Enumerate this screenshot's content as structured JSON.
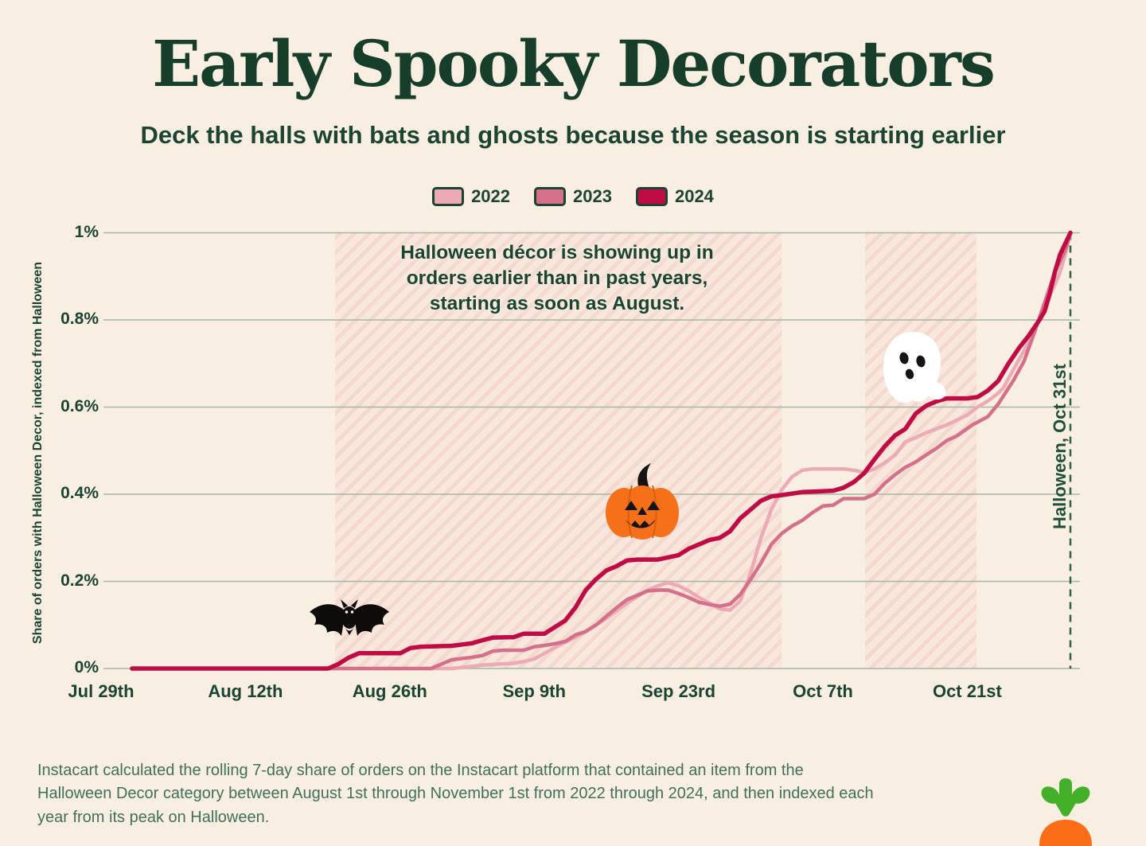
{
  "page": {
    "background": "#f8efe2"
  },
  "header": {
    "title": "Early Spooky Decorators",
    "subtitle": "Deck the halls with bats and ghosts because the season is starting earlier"
  },
  "legend": {
    "items": [
      {
        "label": "2022",
        "color": "#ecaab4",
        "pattern": "hatch"
      },
      {
        "label": "2023",
        "color": "#d4708a",
        "pattern": "dots"
      },
      {
        "label": "2024",
        "color": "#c00c45",
        "pattern": "solid"
      }
    ]
  },
  "chart_data": {
    "type": "line",
    "title": "Early Spooky Decorators",
    "ylabel": "Share of orders with Halloween Decor, indexed from Halloween",
    "xlabel": "",
    "ylim": [
      0,
      1
    ],
    "grid": "horizontal",
    "legend_position": "top",
    "x_unit": "days since Jul 29",
    "y_ticks": [
      {
        "v": 1.0,
        "label": "1%"
      },
      {
        "v": 0.8,
        "label": "0.8%"
      },
      {
        "v": 0.6,
        "label": "0.6%"
      },
      {
        "v": 0.4,
        "label": "0.4%"
      },
      {
        "v": 0.2,
        "label": "0.2%"
      },
      {
        "v": 0.0,
        "label": "0%"
      }
    ],
    "x_ticks": [
      {
        "d": 0,
        "label": "Jul 29th"
      },
      {
        "d": 14,
        "label": "Aug 12th"
      },
      {
        "d": 28,
        "label": "Aug 26th"
      },
      {
        "d": 42,
        "label": "Sep 9th"
      },
      {
        "d": 56,
        "label": "Sep 23rd"
      },
      {
        "d": 70,
        "label": "Oct 7th"
      },
      {
        "d": 84,
        "label": "Oct 21st"
      }
    ],
    "annotation": "Halloween décor is showing up in orders earlier than in past years, starting as soon as August.",
    "halloween_marker": {
      "d": 94,
      "label": "Halloween, Oct 31st"
    },
    "highlight_bands": [
      {
        "from_d": 22.7,
        "to_d": 66.0
      },
      {
        "from_d": 74.1,
        "to_d": 84.9
      }
    ],
    "band_style": {
      "base": "#f9e7de",
      "stripe": "#f2d6ca"
    },
    "gridline_color": "#a3b7a4",
    "marker_line_color": "#2d5f46",
    "decorations": [
      "bat-icon",
      "jack-o-lantern-icon",
      "ghost-icon"
    ],
    "series": [
      {
        "name": "2022",
        "color": "#ecaab4",
        "width": 4.5,
        "points": [
          [
            3,
            0
          ],
          [
            34,
            0
          ],
          [
            36,
            0.005
          ],
          [
            37,
            0.008
          ],
          [
            40,
            0.012
          ],
          [
            41,
            0.016
          ],
          [
            42,
            0.022
          ],
          [
            43,
            0.035
          ],
          [
            44,
            0.048
          ],
          [
            45,
            0.06
          ],
          [
            46,
            0.072
          ],
          [
            47,
            0.085
          ],
          [
            48,
            0.1
          ],
          [
            49,
            0.115
          ],
          [
            50,
            0.133
          ],
          [
            51,
            0.15
          ],
          [
            52,
            0.165
          ],
          [
            53,
            0.18
          ],
          [
            54,
            0.19
          ],
          [
            55,
            0.197
          ],
          [
            56,
            0.19
          ],
          [
            57,
            0.178
          ],
          [
            58,
            0.163
          ],
          [
            59,
            0.15
          ],
          [
            60,
            0.137
          ],
          [
            61,
            0.134
          ],
          [
            62,
            0.155
          ],
          [
            63,
            0.22
          ],
          [
            64,
            0.3
          ],
          [
            65,
            0.365
          ],
          [
            66,
            0.41
          ],
          [
            67,
            0.44
          ],
          [
            68,
            0.455
          ],
          [
            69,
            0.458
          ],
          [
            72,
            0.458
          ],
          [
            73,
            0.455
          ],
          [
            74,
            0.45
          ],
          [
            75,
            0.458
          ],
          [
            76,
            0.472
          ],
          [
            77,
            0.49
          ],
          [
            78,
            0.52
          ],
          [
            79,
            0.53
          ],
          [
            80,
            0.541
          ],
          [
            81,
            0.55
          ],
          [
            82,
            0.559
          ],
          [
            83,
            0.57
          ],
          [
            84,
            0.582
          ],
          [
            85,
            0.6
          ],
          [
            86,
            0.614
          ],
          [
            87,
            0.632
          ],
          [
            87.5,
            0.644
          ],
          [
            88.5,
            0.687
          ],
          [
            89.5,
            0.729
          ],
          [
            90.5,
            0.775
          ],
          [
            91,
            0.8
          ],
          [
            91.5,
            0.826
          ],
          [
            92,
            0.857
          ],
          [
            92.5,
            0.881
          ],
          [
            93,
            0.91
          ],
          [
            93.5,
            0.95
          ],
          [
            94,
            1.0
          ]
        ]
      },
      {
        "name": "2023",
        "color": "#d4708a",
        "width": 4.5,
        "points": [
          [
            3,
            0
          ],
          [
            32,
            0
          ],
          [
            33,
            0.01
          ],
          [
            34,
            0.02
          ],
          [
            36,
            0.026
          ],
          [
            37,
            0.03
          ],
          [
            38,
            0.04
          ],
          [
            39,
            0.042
          ],
          [
            41,
            0.042
          ],
          [
            42,
            0.05
          ],
          [
            43,
            0.053
          ],
          [
            44,
            0.057
          ],
          [
            45,
            0.062
          ],
          [
            46,
            0.077
          ],
          [
            47,
            0.085
          ],
          [
            48,
            0.1
          ],
          [
            49,
            0.12
          ],
          [
            50,
            0.14
          ],
          [
            51,
            0.158
          ],
          [
            52,
            0.168
          ],
          [
            53,
            0.178
          ],
          [
            54,
            0.18
          ],
          [
            55,
            0.18
          ],
          [
            56,
            0.172
          ],
          [
            57,
            0.163
          ],
          [
            58,
            0.152
          ],
          [
            59,
            0.147
          ],
          [
            60,
            0.143
          ],
          [
            61,
            0.148
          ],
          [
            62,
            0.17
          ],
          [
            63,
            0.205
          ],
          [
            64,
            0.242
          ],
          [
            65,
            0.285
          ],
          [
            66,
            0.31
          ],
          [
            67,
            0.327
          ],
          [
            68,
            0.34
          ],
          [
            69,
            0.358
          ],
          [
            70,
            0.373
          ],
          [
            71,
            0.375
          ],
          [
            72,
            0.39
          ],
          [
            74,
            0.39
          ],
          [
            75,
            0.4
          ],
          [
            76,
            0.425
          ],
          [
            77,
            0.445
          ],
          [
            78,
            0.462
          ],
          [
            79,
            0.474
          ],
          [
            80,
            0.49
          ],
          [
            81,
            0.505
          ],
          [
            82,
            0.523
          ],
          [
            83,
            0.534
          ],
          [
            84.5,
            0.559
          ],
          [
            86,
            0.578
          ],
          [
            87,
            0.607
          ],
          [
            88.5,
            0.662
          ],
          [
            89.5,
            0.705
          ],
          [
            90.5,
            0.77
          ],
          [
            91.5,
            0.84
          ],
          [
            92.5,
            0.91
          ],
          [
            93.5,
            0.96
          ],
          [
            94,
            1.0
          ]
        ]
      },
      {
        "name": "2024",
        "color": "#c00c45",
        "width": 5.5,
        "points": [
          [
            3,
            0
          ],
          [
            22,
            0
          ],
          [
            23,
            0.01
          ],
          [
            24,
            0.025
          ],
          [
            25,
            0.035
          ],
          [
            29,
            0.035
          ],
          [
            30,
            0.047
          ],
          [
            31,
            0.05
          ],
          [
            34,
            0.052
          ],
          [
            36,
            0.058
          ],
          [
            37,
            0.065
          ],
          [
            38,
            0.071
          ],
          [
            40,
            0.072
          ],
          [
            41,
            0.08
          ],
          [
            43,
            0.08
          ],
          [
            44,
            0.095
          ],
          [
            45,
            0.11
          ],
          [
            46,
            0.14
          ],
          [
            47,
            0.18
          ],
          [
            48,
            0.205
          ],
          [
            49,
            0.225
          ],
          [
            50,
            0.235
          ],
          [
            51,
            0.248
          ],
          [
            52,
            0.25
          ],
          [
            54,
            0.25
          ],
          [
            56,
            0.26
          ],
          [
            57,
            0.275
          ],
          [
            59,
            0.295
          ],
          [
            60,
            0.3
          ],
          [
            61,
            0.315
          ],
          [
            62,
            0.345
          ],
          [
            63,
            0.365
          ],
          [
            64,
            0.385
          ],
          [
            65,
            0.395
          ],
          [
            66,
            0.398
          ],
          [
            68,
            0.405
          ],
          [
            71,
            0.408
          ],
          [
            72,
            0.415
          ],
          [
            73,
            0.428
          ],
          [
            74,
            0.448
          ],
          [
            75,
            0.48
          ],
          [
            76,
            0.51
          ],
          [
            77,
            0.535
          ],
          [
            78,
            0.55
          ],
          [
            79,
            0.585
          ],
          [
            80,
            0.603
          ],
          [
            81,
            0.613
          ],
          [
            82,
            0.62
          ],
          [
            84,
            0.62
          ],
          [
            85,
            0.623
          ],
          [
            86,
            0.638
          ],
          [
            87,
            0.66
          ],
          [
            88,
            0.7
          ],
          [
            89,
            0.735
          ],
          [
            90,
            0.765
          ],
          [
            91,
            0.8
          ],
          [
            91.5,
            0.82
          ],
          [
            92,
            0.86
          ],
          [
            92.5,
            0.91
          ],
          [
            93,
            0.95
          ],
          [
            93.5,
            0.975
          ],
          [
            94,
            1.0
          ]
        ]
      }
    ]
  },
  "footer": {
    "note": "Instacart calculated the rolling 7-day share of orders on the Instacart platform that contained an item from the Halloween Decor category between August 1st through November 1st from 2022 through 2024, and then indexed each year from its peak on Halloween.",
    "logo": "instacart-carrot"
  }
}
